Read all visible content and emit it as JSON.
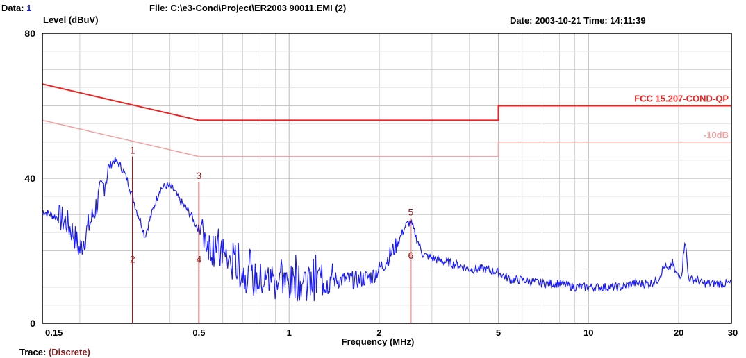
{
  "header": {
    "data_label": "Data:",
    "data_value": "1",
    "file_text": "File: C:\\e3-Cond\\Project\\ER2003 90011.EMI  (2)",
    "date_time": "Date: 2003-10-21  Time: 14:11:39",
    "trace_label": "Trace:",
    "trace_value": "(Discrete)"
  },
  "chart_data": {
    "type": "line",
    "ylabel": "Level (dBuV)",
    "xlabel": "Frequency (MHz)",
    "x_scale": "log",
    "xlim": [
      0.15,
      30
    ],
    "ylim": [
      0,
      80
    ],
    "x_ticks": [
      {
        "value": 0.15,
        "label": "0.15"
      },
      {
        "value": 0.5,
        "label": "0.5"
      },
      {
        "value": 1,
        "label": "1"
      },
      {
        "value": 2,
        "label": "2"
      },
      {
        "value": 5,
        "label": "5"
      },
      {
        "value": 10,
        "label": "10"
      },
      {
        "value": 20,
        "label": "20"
      },
      {
        "value": 30,
        "label": "30"
      }
    ],
    "y_ticks": [
      {
        "value": 0,
        "label": "0"
      },
      {
        "value": 40,
        "label": "40"
      },
      {
        "value": 80,
        "label": "80"
      }
    ],
    "grid": true,
    "limit_lines": [
      {
        "name": "FCC 15.207-COND-QP",
        "color": "#ee2222",
        "points": [
          [
            0.15,
            66
          ],
          [
            0.5,
            56
          ],
          [
            5,
            56
          ],
          [
            5,
            60
          ],
          [
            30,
            60
          ]
        ]
      },
      {
        "name": "-10dB",
        "color": "#f4a0a0",
        "points": [
          [
            0.15,
            56
          ],
          [
            0.5,
            46
          ],
          [
            5,
            46
          ],
          [
            5,
            50
          ],
          [
            30,
            50
          ]
        ]
      }
    ],
    "series": [
      {
        "color": "#1a1aff",
        "x": [
          0.15,
          0.16,
          0.17,
          0.18,
          0.19,
          0.2,
          0.21,
          0.22,
          0.23,
          0.24,
          0.25,
          0.26,
          0.27,
          0.28,
          0.29,
          0.3,
          0.31,
          0.32,
          0.33,
          0.35,
          0.37,
          0.39,
          0.41,
          0.43,
          0.45,
          0.47,
          0.49,
          0.5,
          0.52,
          0.55,
          0.58,
          0.62,
          0.66,
          0.7,
          0.75,
          0.8,
          0.9,
          1.0,
          1.1,
          1.2,
          1.35,
          1.5,
          1.7,
          1.9,
          2.1,
          2.3,
          2.45,
          2.55,
          2.65,
          2.8,
          3.0,
          3.3,
          3.7,
          4.0,
          4.5,
          5.0,
          5.5,
          6.0,
          7.0,
          8.0,
          9.0,
          10,
          11,
          12,
          13,
          14,
          15,
          16,
          17,
          18,
          18.5,
          19,
          19.5,
          20,
          20.5,
          21,
          21.5,
          22,
          23,
          24,
          25,
          26,
          27,
          28,
          29,
          30
        ],
        "y": [
          31,
          30,
          29,
          28,
          25,
          20,
          25,
          29,
          34,
          38,
          43,
          45,
          44,
          42,
          39,
          35,
          31,
          28,
          24,
          31,
          37,
          38,
          37,
          34,
          32,
          30,
          27,
          26,
          24,
          21,
          19,
          17,
          15,
          14,
          12,
          12,
          11,
          11,
          11,
          11,
          12,
          12,
          12,
          13,
          17,
          22,
          27,
          28,
          24,
          19,
          18,
          17,
          16,
          15,
          15,
          14,
          12,
          12,
          11,
          11,
          10,
          10,
          10,
          10,
          10,
          11,
          11,
          11,
          12,
          16,
          14,
          17,
          14,
          13,
          14,
          24,
          13,
          12,
          12,
          11,
          11,
          11,
          11,
          11,
          11,
          11
        ]
      }
    ],
    "markers": [
      {
        "label": "1",
        "x": 0.3,
        "y": 46,
        "line": true
      },
      {
        "label": "2",
        "x": 0.3,
        "y": 16,
        "line": false
      },
      {
        "label": "3",
        "x": 0.5,
        "y": 39,
        "line": true
      },
      {
        "label": "4",
        "x": 0.5,
        "y": 16,
        "line": false
      },
      {
        "label": "5",
        "x": 2.55,
        "y": 29,
        "line": true
      },
      {
        "label": "6",
        "x": 2.55,
        "y": 17,
        "line": false
      }
    ]
  }
}
